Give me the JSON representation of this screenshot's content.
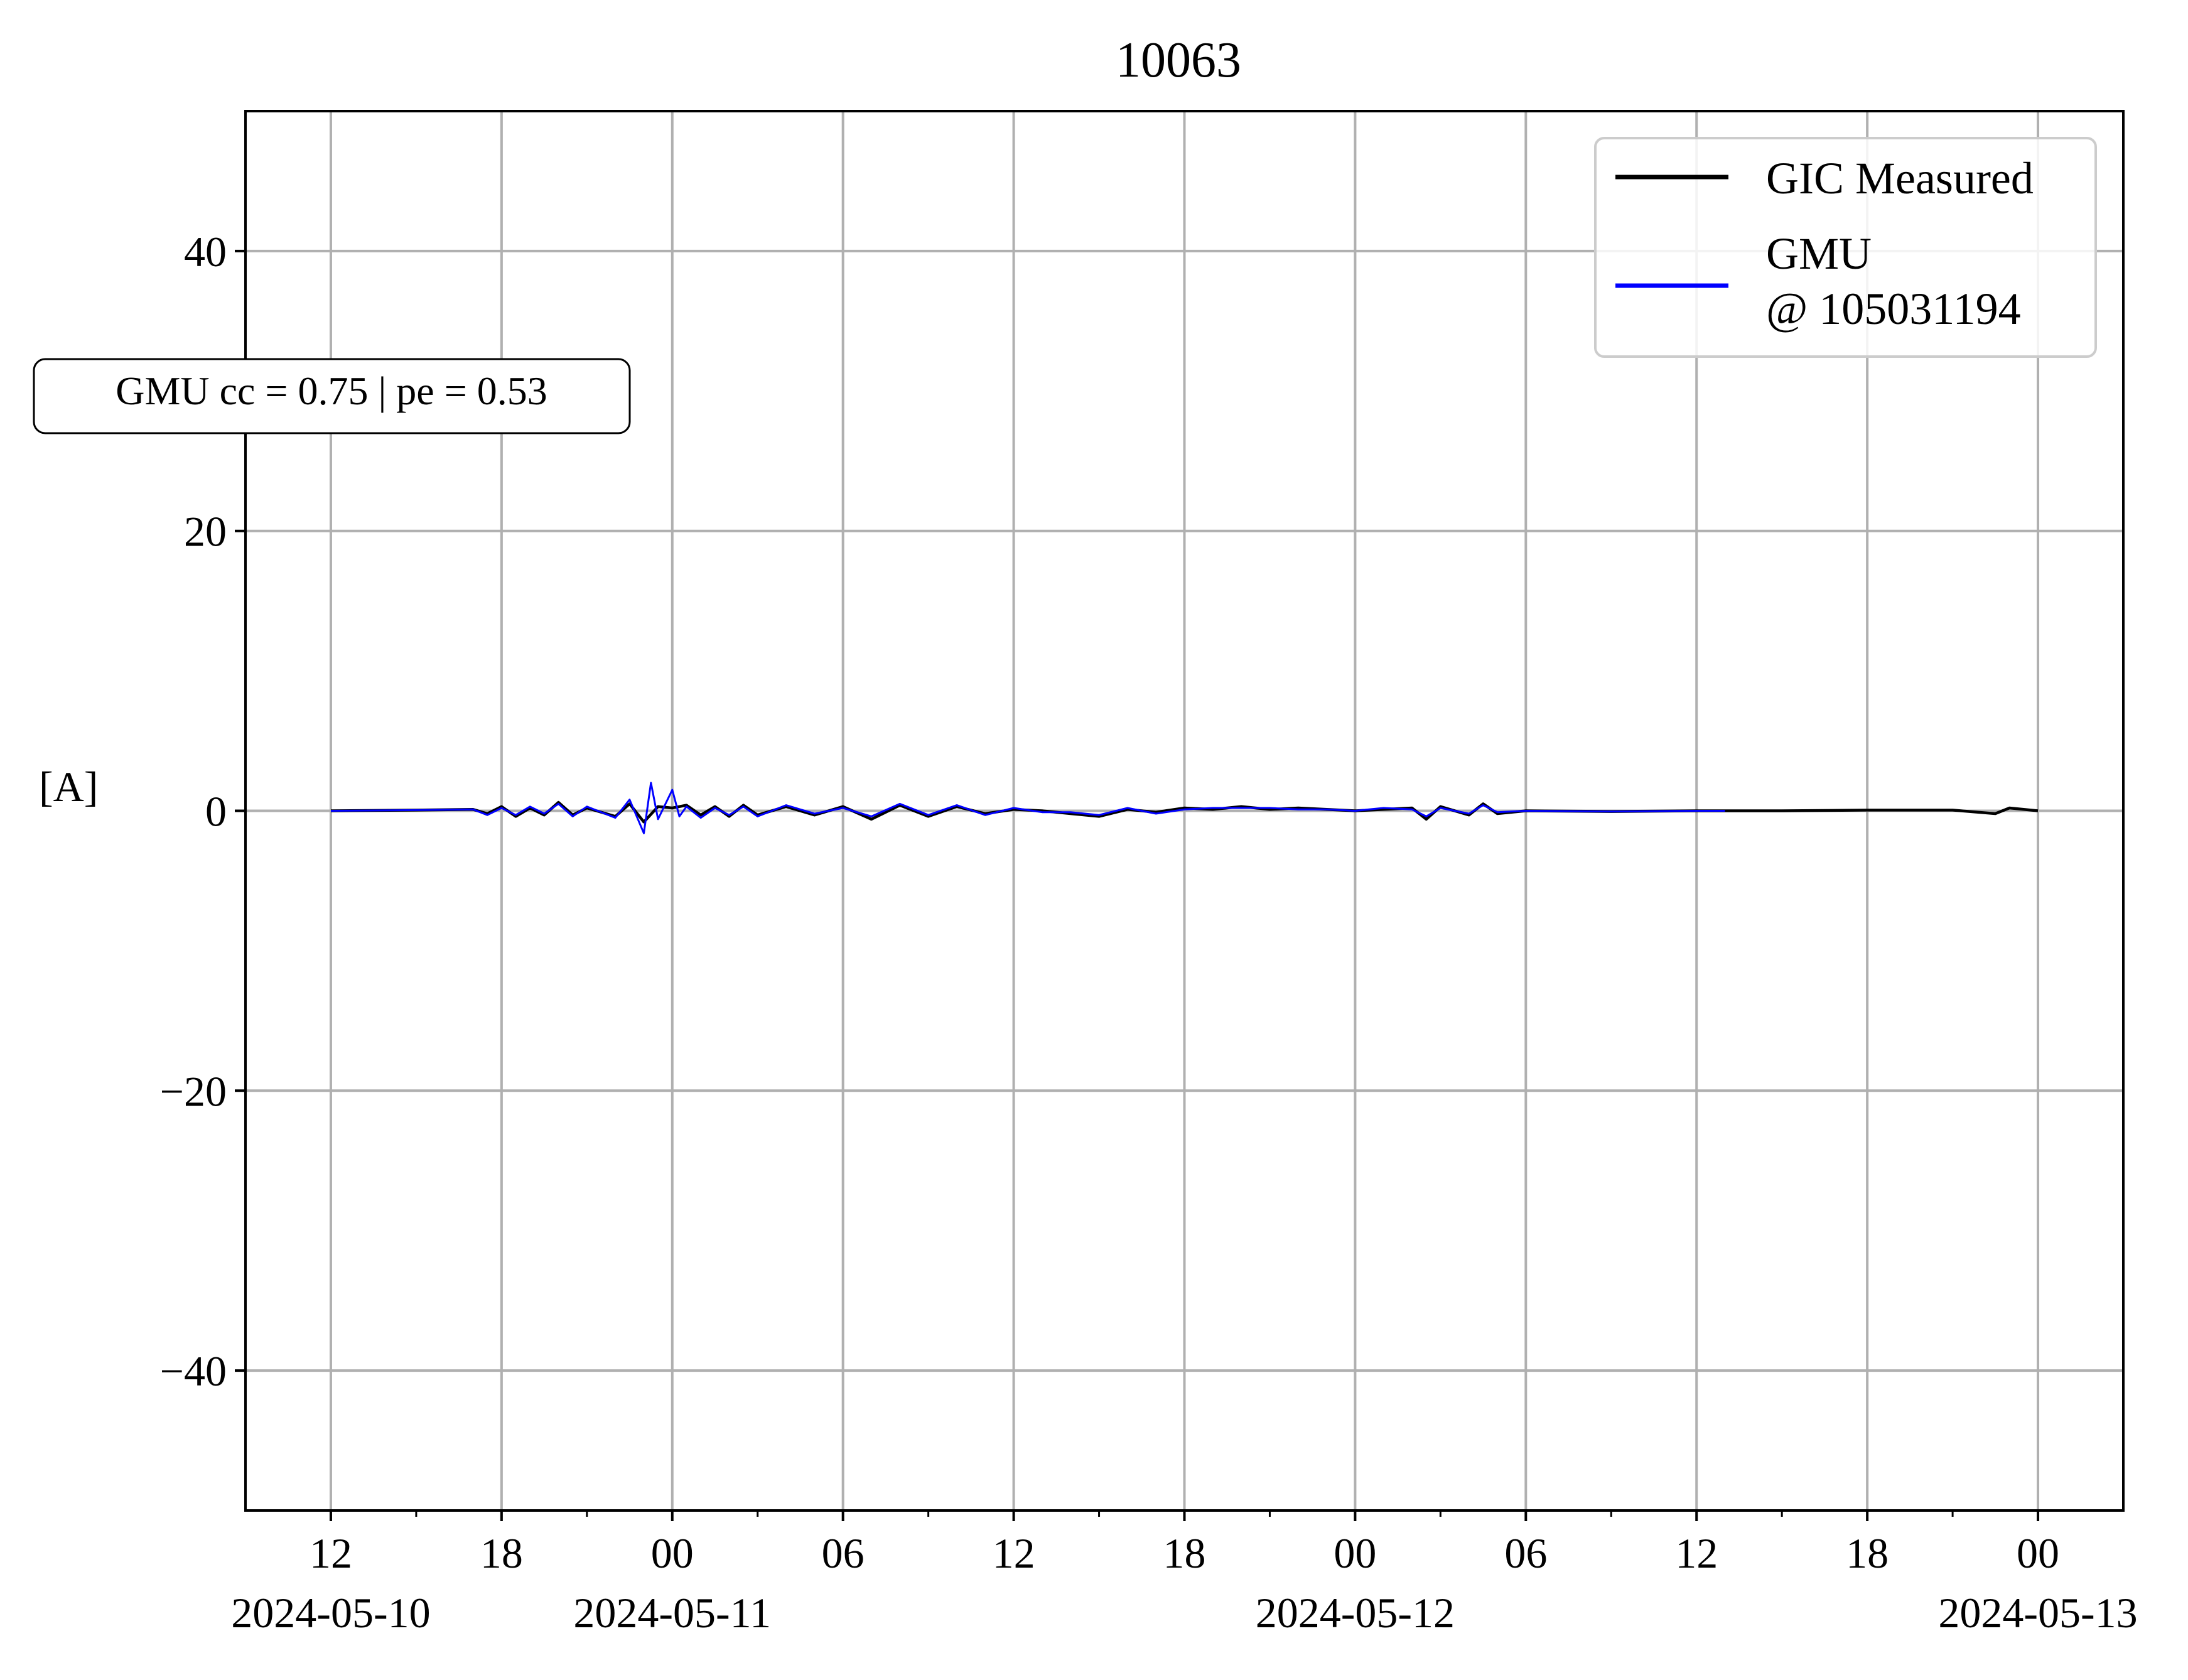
{
  "chart_data": {
    "type": "line",
    "title": "10063",
    "ylabel": "[A]",
    "xlabel": "",
    "xlim": [
      "2024-05-10T09:00",
      "2024-05-13T03:00"
    ],
    "ylim": [
      -50,
      50
    ],
    "grid": true,
    "legend_position": "top-right",
    "yticks": [
      {
        "value": 40,
        "label": "40"
      },
      {
        "value": 20,
        "label": "20"
      },
      {
        "value": 0,
        "label": "0"
      },
      {
        "value": -20,
        "label": "−20"
      },
      {
        "value": -40,
        "label": "−40"
      }
    ],
    "xticks": [
      {
        "time": "2024-05-10T12:00",
        "label": "12",
        "date": "2024-05-10"
      },
      {
        "time": "2024-05-10T18:00",
        "label": "18",
        "date": ""
      },
      {
        "time": "2024-05-11T00:00",
        "label": "00",
        "date": "2024-05-11"
      },
      {
        "time": "2024-05-11T06:00",
        "label": "06",
        "date": ""
      },
      {
        "time": "2024-05-11T12:00",
        "label": "12",
        "date": ""
      },
      {
        "time": "2024-05-11T18:00",
        "label": "18",
        "date": ""
      },
      {
        "time": "2024-05-12T00:00",
        "label": "00",
        "date": "2024-05-12"
      },
      {
        "time": "2024-05-12T06:00",
        "label": "06",
        "date": ""
      },
      {
        "time": "2024-05-12T12:00",
        "label": "12",
        "date": ""
      },
      {
        "time": "2024-05-12T18:00",
        "label": "18",
        "date": ""
      },
      {
        "time": "2024-05-13T00:00",
        "label": "00",
        "date": "2024-05-13"
      }
    ],
    "minor_xticks": [
      "2024-05-10T15:00",
      "2024-05-10T21:00",
      "2024-05-11T03:00",
      "2024-05-11T09:00",
      "2024-05-11T15:00",
      "2024-05-11T21:00",
      "2024-05-12T03:00",
      "2024-05-12T09:00",
      "2024-05-12T15:00",
      "2024-05-12T21:00"
    ],
    "series": [
      {
        "name": "GIC Measured",
        "color": "#000000",
        "points": [
          [
            "2024-05-10T12:00",
            0.0
          ],
          [
            "2024-05-10T15:00",
            0.05
          ],
          [
            "2024-05-10T17:00",
            0.1
          ],
          [
            "2024-05-10T17:30",
            -0.2
          ],
          [
            "2024-05-10T18:00",
            0.3
          ],
          [
            "2024-05-10T18:30",
            -0.4
          ],
          [
            "2024-05-10T19:00",
            0.2
          ],
          [
            "2024-05-10T19:30",
            -0.3
          ],
          [
            "2024-05-10T20:00",
            0.6
          ],
          [
            "2024-05-10T20:30",
            -0.3
          ],
          [
            "2024-05-10T21:00",
            0.2
          ],
          [
            "2024-05-10T22:00",
            -0.4
          ],
          [
            "2024-05-10T22:30",
            0.5
          ],
          [
            "2024-05-10T23:00",
            -0.8
          ],
          [
            "2024-05-10T23:30",
            0.3
          ],
          [
            "2024-05-11T00:00",
            0.2
          ],
          [
            "2024-05-11T00:30",
            0.4
          ],
          [
            "2024-05-11T01:00",
            -0.3
          ],
          [
            "2024-05-11T01:30",
            0.3
          ],
          [
            "2024-05-11T02:00",
            -0.4
          ],
          [
            "2024-05-11T02:30",
            0.4
          ],
          [
            "2024-05-11T03:00",
            -0.3
          ],
          [
            "2024-05-11T04:00",
            0.3
          ],
          [
            "2024-05-11T05:00",
            -0.3
          ],
          [
            "2024-05-11T06:00",
            0.3
          ],
          [
            "2024-05-11T07:00",
            -0.6
          ],
          [
            "2024-05-11T08:00",
            0.4
          ],
          [
            "2024-05-11T09:00",
            -0.4
          ],
          [
            "2024-05-11T10:00",
            0.3
          ],
          [
            "2024-05-11T11:00",
            -0.2
          ],
          [
            "2024-05-11T12:00",
            0.1
          ],
          [
            "2024-05-11T13:00",
            0.0
          ],
          [
            "2024-05-11T14:00",
            -0.2
          ],
          [
            "2024-05-11T15:00",
            -0.4
          ],
          [
            "2024-05-11T16:00",
            0.1
          ],
          [
            "2024-05-11T17:00",
            -0.1
          ],
          [
            "2024-05-11T18:00",
            0.2
          ],
          [
            "2024-05-11T19:00",
            0.1
          ],
          [
            "2024-05-11T20:00",
            0.3
          ],
          [
            "2024-05-11T21:00",
            0.1
          ],
          [
            "2024-05-11T22:00",
            0.2
          ],
          [
            "2024-05-11T23:00",
            0.1
          ],
          [
            "2024-05-12T00:00",
            0.0
          ],
          [
            "2024-05-12T01:00",
            0.1
          ],
          [
            "2024-05-12T02:00",
            0.2
          ],
          [
            "2024-05-12T02:30",
            -0.6
          ],
          [
            "2024-05-12T03:00",
            0.3
          ],
          [
            "2024-05-12T04:00",
            -0.3
          ],
          [
            "2024-05-12T04:30",
            0.5
          ],
          [
            "2024-05-12T05:00",
            -0.2
          ],
          [
            "2024-05-12T06:00",
            0.0
          ],
          [
            "2024-05-12T09:00",
            -0.05
          ],
          [
            "2024-05-12T12:00",
            0.0
          ],
          [
            "2024-05-12T15:00",
            0.0
          ],
          [
            "2024-05-12T18:00",
            0.05
          ],
          [
            "2024-05-12T21:00",
            0.05
          ],
          [
            "2024-05-12T22:30",
            -0.2
          ],
          [
            "2024-05-12T23:00",
            0.2
          ],
          [
            "2024-05-13T00:00",
            0.0
          ]
        ]
      },
      {
        "name": "GMU\n@ 105031194",
        "color": "#0000ff",
        "points": [
          [
            "2024-05-10T12:00",
            0.0
          ],
          [
            "2024-05-10T15:00",
            0.05
          ],
          [
            "2024-05-10T17:00",
            0.1
          ],
          [
            "2024-05-10T17:30",
            -0.3
          ],
          [
            "2024-05-10T18:00",
            0.2
          ],
          [
            "2024-05-10T18:30",
            -0.3
          ],
          [
            "2024-05-10T19:00",
            0.3
          ],
          [
            "2024-05-10T19:30",
            -0.2
          ],
          [
            "2024-05-10T20:00",
            0.5
          ],
          [
            "2024-05-10T20:30",
            -0.4
          ],
          [
            "2024-05-10T21:00",
            0.3
          ],
          [
            "2024-05-10T22:00",
            -0.5
          ],
          [
            "2024-05-10T22:30",
            0.8
          ],
          [
            "2024-05-10T23:00",
            -1.6
          ],
          [
            "2024-05-10T23:15",
            2.0
          ],
          [
            "2024-05-10T23:30",
            -0.6
          ],
          [
            "2024-05-11T00:00",
            1.5
          ],
          [
            "2024-05-11T00:15",
            -0.4
          ],
          [
            "2024-05-11T00:30",
            0.3
          ],
          [
            "2024-05-11T01:00",
            -0.5
          ],
          [
            "2024-05-11T01:30",
            0.2
          ],
          [
            "2024-05-11T02:00",
            -0.3
          ],
          [
            "2024-05-11T02:30",
            0.3
          ],
          [
            "2024-05-11T03:00",
            -0.4
          ],
          [
            "2024-05-11T04:00",
            0.4
          ],
          [
            "2024-05-11T05:00",
            -0.2
          ],
          [
            "2024-05-11T06:00",
            0.2
          ],
          [
            "2024-05-11T07:00",
            -0.4
          ],
          [
            "2024-05-11T08:00",
            0.5
          ],
          [
            "2024-05-11T09:00",
            -0.3
          ],
          [
            "2024-05-11T10:00",
            0.4
          ],
          [
            "2024-05-11T11:00",
            -0.3
          ],
          [
            "2024-05-11T12:00",
            0.2
          ],
          [
            "2024-05-11T13:00",
            -0.1
          ],
          [
            "2024-05-11T14:00",
            -0.1
          ],
          [
            "2024-05-11T15:00",
            -0.3
          ],
          [
            "2024-05-11T16:00",
            0.2
          ],
          [
            "2024-05-11T17:00",
            -0.2
          ],
          [
            "2024-05-11T18:00",
            0.1
          ],
          [
            "2024-05-11T19:00",
            0.2
          ],
          [
            "2024-05-11T20:00",
            0.2
          ],
          [
            "2024-05-11T21:00",
            0.2
          ],
          [
            "2024-05-11T22:00",
            0.1
          ],
          [
            "2024-05-11T23:00",
            0.1
          ],
          [
            "2024-05-12T00:00",
            0.0
          ],
          [
            "2024-05-12T01:00",
            0.2
          ],
          [
            "2024-05-12T02:00",
            0.1
          ],
          [
            "2024-05-12T02:30",
            -0.4
          ],
          [
            "2024-05-12T03:00",
            0.2
          ],
          [
            "2024-05-12T04:00",
            -0.2
          ],
          [
            "2024-05-12T04:30",
            0.4
          ],
          [
            "2024-05-12T05:00",
            -0.1
          ],
          [
            "2024-05-12T06:00",
            0.0
          ],
          [
            "2024-05-12T09:00",
            -0.05
          ],
          [
            "2024-05-12T12:00",
            0.0
          ],
          [
            "2024-05-12T13:00",
            0.0
          ]
        ]
      }
    ],
    "annotation": "GMU cc = 0.75 | pe = 0.53"
  }
}
